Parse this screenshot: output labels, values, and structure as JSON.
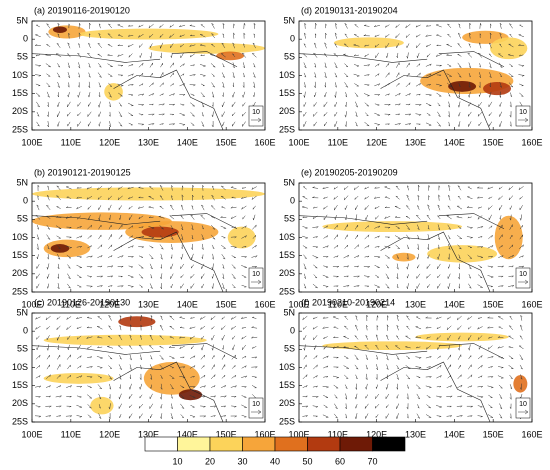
{
  "panels": [
    {
      "title": "(a) 20190116-20190120",
      "reference_vector": "10"
    },
    {
      "title": "(d) 20190131-20190204",
      "reference_vector": "10"
    },
    {
      "title": "(b) 20190121-20190125",
      "reference_vector": "10"
    },
    {
      "title": "(e) 20190205-20190209",
      "reference_vector": "10"
    },
    {
      "title": "(c) 20190126-20190130",
      "reference_vector": "10"
    },
    {
      "title": "(f) 20190210-20190214",
      "reference_vector": "10"
    }
  ],
  "xlim": [
    100,
    160
  ],
  "ylim": [
    -25,
    5
  ],
  "xticks": [
    {
      "value": 100,
      "label": "100E"
    },
    {
      "value": 110,
      "label": "110E"
    },
    {
      "value": 120,
      "label": "120E"
    },
    {
      "value": 130,
      "label": "130E"
    },
    {
      "value": 140,
      "label": "140E"
    },
    {
      "value": 150,
      "label": "150E"
    },
    {
      "value": 160,
      "label": "160E"
    }
  ],
  "yticks": [
    {
      "value": 5,
      "label": "5N"
    },
    {
      "value": 0,
      "label": "0"
    },
    {
      "value": -5,
      "label": "5S"
    },
    {
      "value": -10,
      "label": "10S"
    },
    {
      "value": -15,
      "label": "15S"
    },
    {
      "value": -20,
      "label": "20S"
    },
    {
      "value": -25,
      "label": "25S"
    }
  ],
  "colorbar": {
    "levels": [
      10,
      20,
      30,
      40,
      50,
      60,
      70
    ],
    "colors": [
      "#ffffff",
      "#fff59a",
      "#fcd35a",
      "#f6a53a",
      "#e0701e",
      "#b23a10",
      "#6e1a06",
      "#000000"
    ]
  }
}
